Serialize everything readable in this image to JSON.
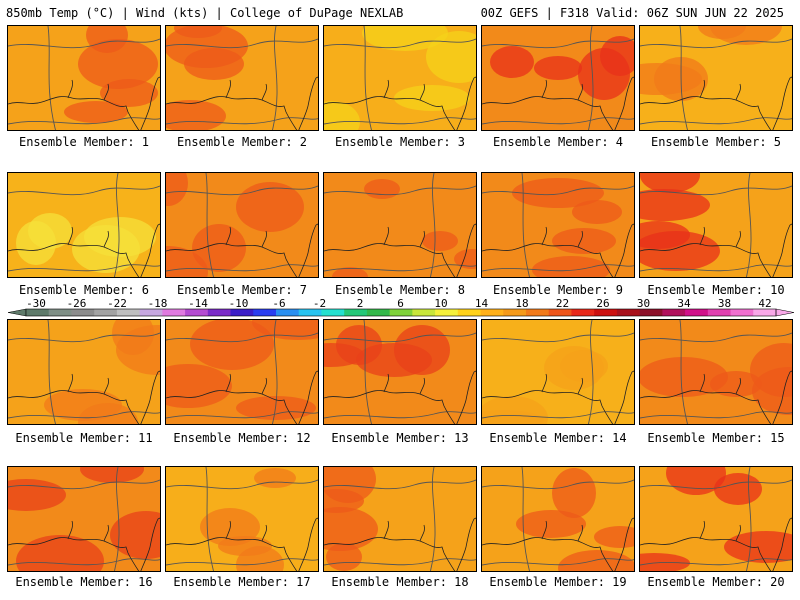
{
  "header": {
    "left": "850mb Temp (°C) | Wind (kts) | College of DuPage NEXLAB",
    "right": "00Z GEFS | F318 Valid: 06Z SUN JUN 22 2025"
  },
  "colorbar": {
    "labels": [
      "-30",
      "-26",
      "-22",
      "-18",
      "-14",
      "-10",
      "-6",
      "-2",
      "2",
      "6",
      "10",
      "14",
      "18",
      "22",
      "26",
      "30",
      "34",
      "38",
      "42"
    ],
    "colors": [
      "#5e7a6a",
      "#7f8f86",
      "#8c8c8c",
      "#a3a3a3",
      "#bfbfbf",
      "#c6a7e0",
      "#e07ae0",
      "#b44bd1",
      "#7a2bc7",
      "#3b1ec8",
      "#2a3ef0",
      "#2a8ff0",
      "#27c3f0",
      "#24e0d0",
      "#24c878",
      "#33b84a",
      "#7fd23a",
      "#c8e63a",
      "#f5f03a",
      "#ffd21a",
      "#ffb01a",
      "#f59a1a",
      "#f27a1a",
      "#ee551a",
      "#e8281a",
      "#cc1010",
      "#a8101c",
      "#8c102a",
      "#b0105c",
      "#d0108a",
      "#e040b0",
      "#f070d0",
      "#f8a8e8"
    ]
  },
  "panels": [
    {
      "label": "Ensemble Member: 1",
      "base": "#f5a21a",
      "tint": "#ee5a1a"
    },
    {
      "label": "Ensemble Member: 2",
      "base": "#f5a21a",
      "tint": "#ee5a1a"
    },
    {
      "label": "Ensemble Member: 3",
      "base": "#f7ae1a",
      "tint": "#f5d21a"
    },
    {
      "label": "Ensemble Member: 4",
      "base": "#f28a1a",
      "tint": "#e8301a"
    },
    {
      "label": "Ensemble Member: 5",
      "base": "#f7b01a",
      "tint": "#f27a1a"
    },
    {
      "label": "Ensemble Member: 6",
      "base": "#f7b21a",
      "tint": "#f5e03a"
    },
    {
      "label": "Ensemble Member: 7",
      "base": "#f28a1a",
      "tint": "#ee5a1a"
    },
    {
      "label": "Ensemble Member: 8",
      "base": "#f28a1a",
      "tint": "#ee5a1a"
    },
    {
      "label": "Ensemble Member: 9",
      "base": "#f28a1a",
      "tint": "#ee5a1a"
    },
    {
      "label": "Ensemble Member: 10",
      "base": "#f5a21a",
      "tint": "#e8301a"
    },
    {
      "label": "Ensemble Member: 11",
      "base": "#f5a21a",
      "tint": "#f27a1a"
    },
    {
      "label": "Ensemble Member: 12",
      "base": "#f28a1a",
      "tint": "#ee5a1a"
    },
    {
      "label": "Ensemble Member: 13",
      "base": "#f28a1a",
      "tint": "#e8401a"
    },
    {
      "label": "Ensemble Member: 14",
      "base": "#f7b01a",
      "tint": "#f5a21a"
    },
    {
      "label": "Ensemble Member: 15",
      "base": "#f28a1a",
      "tint": "#ee5a1a"
    },
    {
      "label": "Ensemble Member: 16",
      "base": "#f28a1a",
      "tint": "#e8401a"
    },
    {
      "label": "Ensemble Member: 17",
      "base": "#f7ae1a",
      "tint": "#f27a1a"
    },
    {
      "label": "Ensemble Member: 18",
      "base": "#f5a21a",
      "tint": "#ee5a1a"
    },
    {
      "label": "Ensemble Member: 19",
      "base": "#f5a21a",
      "tint": "#ee5a1a"
    },
    {
      "label": "Ensemble Member: 20",
      "base": "#f5a21a",
      "tint": "#e8301a"
    }
  ]
}
